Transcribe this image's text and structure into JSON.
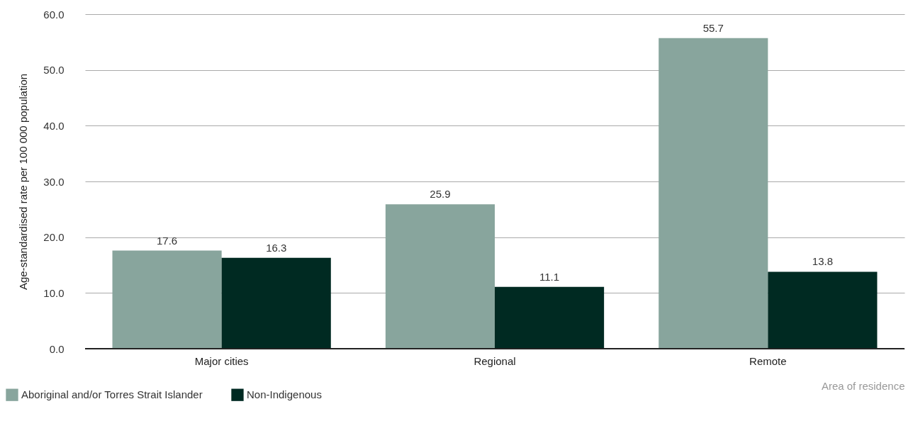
{
  "chart_data": {
    "type": "bar",
    "ylabel": "Age-standardised rate per 100 000 population",
    "xlabel": "Area of residence",
    "categories": [
      "Major cities",
      "Regional",
      "Remote"
    ],
    "series": [
      {
        "name": "Aboriginal and/or Torres Strait Islander",
        "color": "#88a59d",
        "values": [
          17.6,
          25.9,
          55.7
        ]
      },
      {
        "name": "Non-Indigenous",
        "color": "#002a22",
        "values": [
          16.3,
          11.1,
          13.8
        ]
      }
    ],
    "ylim": [
      0,
      60
    ],
    "yticks": [
      {
        "value": 0,
        "label": "0.0"
      },
      {
        "value": 10,
        "label": "10.0"
      },
      {
        "value": 20,
        "label": "20.0"
      },
      {
        "value": 30,
        "label": "30.0"
      },
      {
        "value": 40,
        "label": "40.0"
      },
      {
        "value": 50,
        "label": "50.0"
      },
      {
        "value": 60,
        "label": "60.0"
      }
    ],
    "grid": "y",
    "legend": "bottom left",
    "data_labels": true
  }
}
